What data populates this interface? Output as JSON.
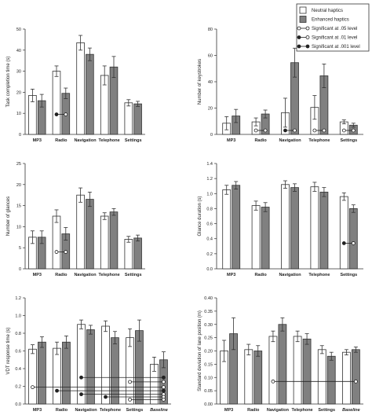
{
  "legend": {
    "items": [
      {
        "label": "Neutral haptics",
        "kind": "box",
        "fill": "#ffffff"
      },
      {
        "label": "Enhanced haptics",
        "kind": "box",
        "fill": "#808080"
      },
      {
        "label": "Significant at .05 level",
        "kind": "sig",
        "marker_a": "#ffffff",
        "marker_b": "#ffffff"
      },
      {
        "label": "Significant at .01 level",
        "kind": "sig",
        "marker_a": "#222222",
        "marker_b": "#ffffff"
      },
      {
        "label": "Significant at .001 level",
        "kind": "sig",
        "marker_a": "#222222",
        "marker_b": "#222222"
      }
    ]
  },
  "colors": {
    "neutral": "#ffffff",
    "enhanced": "#808080",
    "stroke": "#333333"
  },
  "chart_data": [
    {
      "type": "bar",
      "ylabel": "Task completion time (s)",
      "ylim": [
        0,
        50
      ],
      "yticks": [
        0,
        10,
        20,
        30,
        40,
        50
      ],
      "categories": [
        "MP3",
        "Radio",
        "Navigation",
        "Telephone",
        "Settings"
      ],
      "series": [
        {
          "name": "Neutral haptics",
          "values": [
            18.5,
            30,
            43.5,
            28,
            15
          ],
          "errors": [
            3,
            2.5,
            3.5,
            4.5,
            1.5
          ]
        },
        {
          "name": "Enhanced haptics",
          "values": [
            16,
            19.5,
            38,
            32,
            14.5
          ],
          "errors": [
            3,
            2.5,
            3,
            5,
            1.2
          ]
        }
      ],
      "significance": [
        {
          "category": "Radio",
          "level": ".01",
          "y": 9.5
        }
      ]
    },
    {
      "type": "bar",
      "ylabel": "Number of keystrokes",
      "ylim": [
        0,
        80
      ],
      "yticks": [
        0,
        20,
        40,
        60,
        80
      ],
      "categories": [
        "MP3",
        "Radio",
        "Navigation",
        "Telephone",
        "Settings"
      ],
      "series": [
        {
          "name": "Neutral haptics",
          "values": [
            8.5,
            9.5,
            16.5,
            20.5,
            9.5
          ],
          "errors": [
            5,
            3,
            11,
            9,
            1.5
          ]
        },
        {
          "name": "Enhanced haptics",
          "values": [
            14,
            15.5,
            54.5,
            44.5,
            7
          ],
          "errors": [
            5,
            3,
            11,
            9,
            1.5
          ]
        }
      ],
      "significance": [
        {
          "category": "Radio",
          "level": ".05",
          "y": 3
        },
        {
          "category": "Navigation",
          "level": ".01",
          "y": 3
        },
        {
          "category": "Telephone",
          "level": ".05",
          "y": 3
        },
        {
          "category": "Settings",
          "level": ".05",
          "y": 3
        }
      ]
    },
    {
      "type": "bar",
      "ylabel": "Number of glances",
      "ylim": [
        0,
        25
      ],
      "yticks": [
        0,
        5,
        10,
        15,
        20,
        25
      ],
      "categories": [
        "MP3",
        "Radio",
        "Navigation",
        "Telephone",
        "Settings"
      ],
      "series": [
        {
          "name": "Neutral haptics",
          "values": [
            7.5,
            12.5,
            17.5,
            12.5,
            7
          ],
          "errors": [
            1.5,
            1.5,
            1.7,
            0.8,
            0.7
          ]
        },
        {
          "name": "Enhanced haptics",
          "values": [
            7.5,
            8.3,
            16.5,
            13.5,
            7.3
          ],
          "errors": [
            1.5,
            1.5,
            1.7,
            0.8,
            0.7
          ]
        }
      ],
      "significance": [
        {
          "category": "Radio",
          "level": ".05",
          "y": 4
        }
      ]
    },
    {
      "type": "bar",
      "ylabel": "Glance duration (s)",
      "ylim": [
        0,
        1.4
      ],
      "yticks": [
        0.0,
        0.2,
        0.4,
        0.6,
        0.8,
        1.0,
        1.2,
        1.4
      ],
      "categories": [
        "MP3",
        "Radio",
        "Navigation",
        "Telephone",
        "Settings"
      ],
      "series": [
        {
          "name": "Neutral haptics",
          "values": [
            1.05,
            0.84,
            1.12,
            1.09,
            0.96
          ],
          "errors": [
            0.06,
            0.06,
            0.05,
            0.06,
            0.05
          ]
        },
        {
          "name": "Enhanced haptics",
          "values": [
            1.11,
            0.82,
            1.08,
            1.02,
            0.8
          ],
          "errors": [
            0.05,
            0.06,
            0.05,
            0.06,
            0.05
          ]
        }
      ],
      "significance": [
        {
          "category": "Settings",
          "level": ".01",
          "y": 0.34
        }
      ]
    },
    {
      "type": "bar",
      "ylabel": "VDT response time (s)",
      "ylim": [
        0,
        1.2
      ],
      "yticks": [
        0.0,
        0.2,
        0.4,
        0.6,
        0.8,
        1.0,
        1.2
      ],
      "categories": [
        "MP3",
        "Radio",
        "Navigation",
        "Telephone",
        "Settings",
        "Baseline"
      ],
      "italic_categories": [
        "Baseline"
      ],
      "series": [
        {
          "name": "Neutral haptics",
          "values": [
            0.62,
            0.63,
            0.9,
            0.88,
            0.75,
            0.45
          ],
          "errors": [
            0.05,
            0.07,
            0.05,
            0.06,
            0.1,
            0.08
          ]
        },
        {
          "name": "Enhanced haptics",
          "values": [
            0.7,
            0.7,
            0.84,
            0.75,
            0.83,
            0.5
          ],
          "errors": [
            0.06,
            0.07,
            0.05,
            0.07,
            0.12,
            0.09
          ]
        }
      ],
      "significance": [
        {
          "from": "MP3",
          "to": "Baseline",
          "level": ".05",
          "y": 0.19
        },
        {
          "from": "Radio",
          "to": "Baseline",
          "level": ".001",
          "y": 0.15
        },
        {
          "from": "Navigation",
          "to": "Baseline",
          "level": ".01",
          "y": 0.11
        },
        {
          "from": "Navigation",
          "to": "Baseline",
          "level": ".001",
          "y": 0.3
        },
        {
          "from": "Telephone",
          "to": "Baseline",
          "level": ".01",
          "y": 0.08
        },
        {
          "from": "Settings",
          "to": "Baseline",
          "level": ".05",
          "y": 0.05
        },
        {
          "from": "Settings",
          "to": "Baseline",
          "level": ".05",
          "y": 0.25
        }
      ]
    },
    {
      "type": "bar",
      "ylabel": "Standard deviation of lane position (m)",
      "ylim": [
        0,
        0.4
      ],
      "yticks": [
        0.0,
        0.05,
        0.1,
        0.15,
        0.2,
        0.25,
        0.3,
        0.35,
        0.4
      ],
      "categories": [
        "MP3",
        "Radio",
        "Navigation",
        "Telephone",
        "Settings",
        "Baseline"
      ],
      "italic_categories": [
        "Baseline"
      ],
      "series": [
        {
          "name": "Neutral haptics",
          "values": [
            0.2,
            0.205,
            0.255,
            0.255,
            0.205,
            0.195
          ],
          "errors": [
            0.04,
            0.02,
            0.02,
            0.02,
            0.015,
            0.01
          ]
        },
        {
          "name": "Enhanced haptics",
          "values": [
            0.265,
            0.2,
            0.3,
            0.245,
            0.18,
            0.205
          ],
          "errors": [
            0.06,
            0.02,
            0.025,
            0.02,
            0.015,
            0.01
          ]
        }
      ],
      "significance": [
        {
          "from": "Navigation",
          "to": "Baseline",
          "level": ".05",
          "y": 0.085
        }
      ]
    }
  ]
}
